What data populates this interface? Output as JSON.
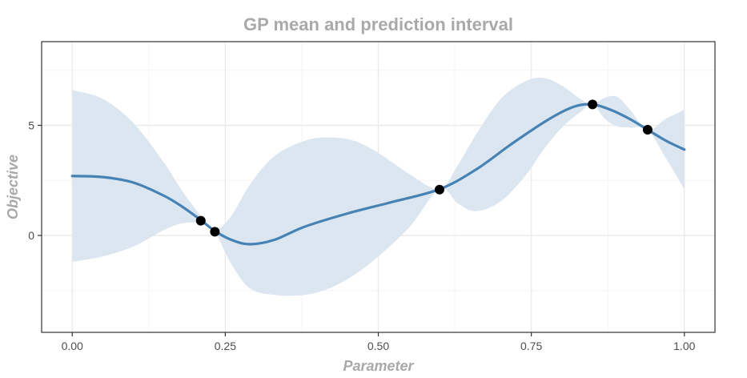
{
  "chart_data": {
    "type": "line",
    "title": "GP mean and prediction interval",
    "xlabel": "Parameter",
    "ylabel": "Objective",
    "xlim": [
      -0.05,
      1.05
    ],
    "ylim": [
      -4.4,
      8.8
    ],
    "x_ticks": [
      0.0,
      0.25,
      0.5,
      0.75,
      1.0
    ],
    "x_tick_labels": [
      "0.00",
      "0.25",
      "0.50",
      "0.75",
      "1.00"
    ],
    "y_ticks": [
      0,
      5
    ],
    "y_tick_labels": [
      "0",
      "5"
    ],
    "grid": true,
    "legend": "none",
    "colors": {
      "mean": "#4682b4",
      "interval": "#dce6f0",
      "points": "#000000",
      "title": "#a9a9a9",
      "axis_title": "#a9a9a9",
      "panel_border": "#333333",
      "grid_major": "#ebebeb",
      "grid_minor": "#f4f4f4"
    },
    "series": [
      {
        "type": "line",
        "x": [
          0.0,
          0.05,
          0.1,
          0.15,
          0.18,
          0.21,
          0.233,
          0.26,
          0.29,
          0.33,
          0.38,
          0.45,
          0.52,
          0.6,
          0.66,
          0.72,
          0.78,
          0.82,
          0.85,
          0.88,
          0.91,
          0.94,
          0.97,
          1.0
        ],
        "y": [
          2.7,
          2.65,
          2.4,
          1.8,
          1.3,
          0.7,
          0.2,
          -0.2,
          -0.4,
          -0.2,
          0.4,
          1.0,
          1.5,
          2.1,
          3.0,
          4.2,
          5.3,
          5.85,
          5.95,
          5.7,
          5.3,
          4.8,
          4.3,
          3.9
        ]
      },
      {
        "type": "area",
        "x": [
          0.0,
          0.05,
          0.1,
          0.15,
          0.18,
          0.21,
          0.233,
          0.26,
          0.29,
          0.33,
          0.38,
          0.42,
          0.46,
          0.5,
          0.55,
          0.6,
          0.63,
          0.66,
          0.7,
          0.74,
          0.77,
          0.8,
          0.83,
          0.85,
          0.87,
          0.89,
          0.91,
          0.94,
          0.97,
          1.0
        ],
        "upper": [
          6.6,
          6.2,
          5.1,
          3.3,
          2.0,
          0.9,
          0.25,
          0.9,
          2.3,
          3.6,
          4.3,
          4.45,
          4.3,
          3.75,
          2.8,
          2.1,
          3.2,
          4.6,
          6.2,
          7.0,
          7.15,
          6.8,
          6.2,
          5.95,
          6.25,
          6.3,
          5.75,
          4.8,
          5.3,
          5.7
        ],
        "lower": [
          -1.2,
          -0.95,
          -0.5,
          0.25,
          0.55,
          0.55,
          0.15,
          -1.3,
          -2.4,
          -2.7,
          -2.7,
          -2.4,
          -1.8,
          -0.95,
          0.35,
          2.1,
          1.45,
          1.1,
          1.55,
          2.7,
          3.9,
          4.9,
          5.6,
          5.95,
          5.3,
          4.95,
          4.9,
          4.8,
          3.5,
          2.1
        ]
      },
      {
        "type": "scatter",
        "x": [
          0.21,
          0.233,
          0.6,
          0.85,
          0.94
        ],
        "y": [
          0.67,
          0.17,
          2.08,
          5.95,
          4.8
        ]
      }
    ]
  }
}
